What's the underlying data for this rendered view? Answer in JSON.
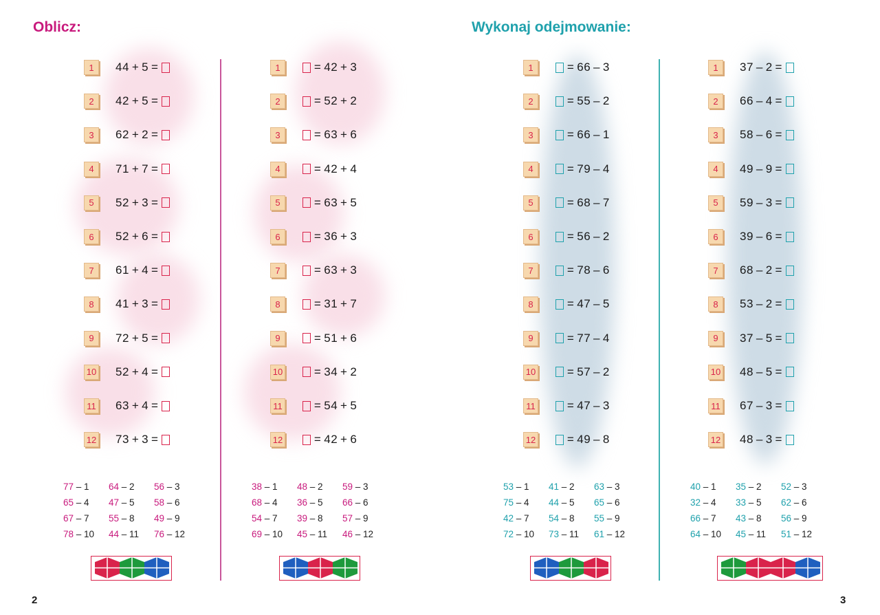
{
  "titles": {
    "left": "Oblicz:",
    "right": "Wykonaj odejmowanie:"
  },
  "page_numbers": {
    "left": "2",
    "right": "3"
  },
  "colors": {
    "pink": "#c81a7d",
    "teal": "#1fa1ac",
    "red": "#d9234b",
    "green": "#1e9a3c",
    "blue": "#1f5fbf"
  },
  "columns": [
    {
      "type": "a",
      "color": "pink",
      "problems": [
        {
          "n": "1",
          "a": "44",
          "op": "+",
          "b": "5"
        },
        {
          "n": "2",
          "a": "42",
          "op": "+",
          "b": "5"
        },
        {
          "n": "3",
          "a": "62",
          "op": "+",
          "b": "2"
        },
        {
          "n": "4",
          "a": "71",
          "op": "+",
          "b": "7"
        },
        {
          "n": "5",
          "a": "52",
          "op": "+",
          "b": "3"
        },
        {
          "n": "6",
          "a": "52",
          "op": "+",
          "b": "6"
        },
        {
          "n": "7",
          "a": "61",
          "op": "+",
          "b": "4"
        },
        {
          "n": "8",
          "a": "41",
          "op": "+",
          "b": "3"
        },
        {
          "n": "9",
          "a": "72",
          "op": "+",
          "b": "5"
        },
        {
          "n": "10",
          "a": "52",
          "op": "+",
          "b": "4"
        },
        {
          "n": "11",
          "a": "63",
          "op": "+",
          "b": "4"
        },
        {
          "n": "12",
          "a": "73",
          "op": "+",
          "b": "3"
        }
      ],
      "answers": [
        [
          {
            "v": "77",
            "i": "1"
          },
          {
            "v": "64",
            "i": "2"
          },
          {
            "v": "56",
            "i": "3"
          }
        ],
        [
          {
            "v": "65",
            "i": "4"
          },
          {
            "v": "47",
            "i": "5"
          },
          {
            "v": "58",
            "i": "6"
          }
        ],
        [
          {
            "v": "67",
            "i": "7"
          },
          {
            "v": "55",
            "i": "8"
          },
          {
            "v": "49",
            "i": "9"
          }
        ],
        [
          {
            "v": "78",
            "i": "10"
          },
          {
            "v": "44",
            "i": "11"
          },
          {
            "v": "76",
            "i": "12"
          }
        ]
      ],
      "pattern": [
        "red",
        "green",
        "blue"
      ]
    },
    {
      "type": "b",
      "color": "pink",
      "problems": [
        {
          "n": "1",
          "a": "42",
          "op": "+",
          "b": "3"
        },
        {
          "n": "2",
          "a": "52",
          "op": "+",
          "b": "2"
        },
        {
          "n": "3",
          "a": "63",
          "op": "+",
          "b": "6"
        },
        {
          "n": "4",
          "a": "42",
          "op": "+",
          "b": "4"
        },
        {
          "n": "5",
          "a": "63",
          "op": "+",
          "b": "5"
        },
        {
          "n": "6",
          "a": "36",
          "op": "+",
          "b": "3"
        },
        {
          "n": "7",
          "a": "63",
          "op": "+",
          "b": "3"
        },
        {
          "n": "8",
          "a": "31",
          "op": "+",
          "b": "7"
        },
        {
          "n": "9",
          "a": "51",
          "op": "+",
          "b": "6"
        },
        {
          "n": "10",
          "a": "34",
          "op": "+",
          "b": "2"
        },
        {
          "n": "11",
          "a": "54",
          "op": "+",
          "b": "5"
        },
        {
          "n": "12",
          "a": "42",
          "op": "+",
          "b": "6"
        }
      ],
      "answers": [
        [
          {
            "v": "38",
            "i": "1"
          },
          {
            "v": "48",
            "i": "2"
          },
          {
            "v": "59",
            "i": "3"
          }
        ],
        [
          {
            "v": "68",
            "i": "4"
          },
          {
            "v": "36",
            "i": "5"
          },
          {
            "v": "66",
            "i": "6"
          }
        ],
        [
          {
            "v": "54",
            "i": "7"
          },
          {
            "v": "39",
            "i": "8"
          },
          {
            "v": "57",
            "i": "9"
          }
        ],
        [
          {
            "v": "69",
            "i": "10"
          },
          {
            "v": "45",
            "i": "11"
          },
          {
            "v": "46",
            "i": "12"
          }
        ]
      ],
      "pattern": [
        "blue",
        "red",
        "green"
      ]
    },
    {
      "type": "b",
      "color": "teal",
      "problems": [
        {
          "n": "1",
          "a": "66",
          "op": "–",
          "b": "3"
        },
        {
          "n": "2",
          "a": "55",
          "op": "–",
          "b": "2"
        },
        {
          "n": "3",
          "a": "66",
          "op": "–",
          "b": "1"
        },
        {
          "n": "4",
          "a": "79",
          "op": "–",
          "b": "4"
        },
        {
          "n": "5",
          "a": "68",
          "op": "–",
          "b": "7"
        },
        {
          "n": "6",
          "a": "56",
          "op": "–",
          "b": "2"
        },
        {
          "n": "7",
          "a": "78",
          "op": "–",
          "b": "6"
        },
        {
          "n": "8",
          "a": "47",
          "op": "–",
          "b": "5"
        },
        {
          "n": "9",
          "a": "77",
          "op": "–",
          "b": "4"
        },
        {
          "n": "10",
          "a": "57",
          "op": "–",
          "b": "2"
        },
        {
          "n": "11",
          "a": "47",
          "op": "–",
          "b": "3"
        },
        {
          "n": "12",
          "a": "49",
          "op": "–",
          "b": "8"
        }
      ],
      "answers": [
        [
          {
            "v": "53",
            "i": "1"
          },
          {
            "v": "41",
            "i": "2"
          },
          {
            "v": "63",
            "i": "3"
          }
        ],
        [
          {
            "v": "75",
            "i": "4"
          },
          {
            "v": "44",
            "i": "5"
          },
          {
            "v": "65",
            "i": "6"
          }
        ],
        [
          {
            "v": "42",
            "i": "7"
          },
          {
            "v": "54",
            "i": "8"
          },
          {
            "v": "55",
            "i": "9"
          }
        ],
        [
          {
            "v": "72",
            "i": "10"
          },
          {
            "v": "73",
            "i": "11"
          },
          {
            "v": "61",
            "i": "12"
          }
        ]
      ],
      "pattern": [
        "blue",
        "green",
        "red"
      ]
    },
    {
      "type": "a",
      "color": "teal",
      "problems": [
        {
          "n": "1",
          "a": "37",
          "op": "–",
          "b": "2"
        },
        {
          "n": "2",
          "a": "66",
          "op": "–",
          "b": "4"
        },
        {
          "n": "3",
          "a": "58",
          "op": "–",
          "b": "6"
        },
        {
          "n": "4",
          "a": "49",
          "op": "–",
          "b": "9"
        },
        {
          "n": "5",
          "a": "59",
          "op": "–",
          "b": "3"
        },
        {
          "n": "6",
          "a": "39",
          "op": "–",
          "b": "6"
        },
        {
          "n": "7",
          "a": "68",
          "op": "–",
          "b": "2"
        },
        {
          "n": "8",
          "a": "53",
          "op": "–",
          "b": "2"
        },
        {
          "n": "9",
          "a": "37",
          "op": "–",
          "b": "5"
        },
        {
          "n": "10",
          "a": "48",
          "op": "–",
          "b": "5"
        },
        {
          "n": "11",
          "a": "67",
          "op": "–",
          "b": "3"
        },
        {
          "n": "12",
          "a": "48",
          "op": "–",
          "b": "3"
        }
      ],
      "answers": [
        [
          {
            "v": "40",
            "i": "1"
          },
          {
            "v": "35",
            "i": "2"
          },
          {
            "v": "52",
            "i": "3"
          }
        ],
        [
          {
            "v": "32",
            "i": "4"
          },
          {
            "v": "33",
            "i": "5"
          },
          {
            "v": "62",
            "i": "6"
          }
        ],
        [
          {
            "v": "66",
            "i": "7"
          },
          {
            "v": "43",
            "i": "8"
          },
          {
            "v": "56",
            "i": "9"
          }
        ],
        [
          {
            "v": "64",
            "i": "10"
          },
          {
            "v": "45",
            "i": "11"
          },
          {
            "v": "51",
            "i": "12"
          }
        ]
      ],
      "pattern": [
        "green",
        "red",
        "red",
        "blue"
      ]
    }
  ]
}
